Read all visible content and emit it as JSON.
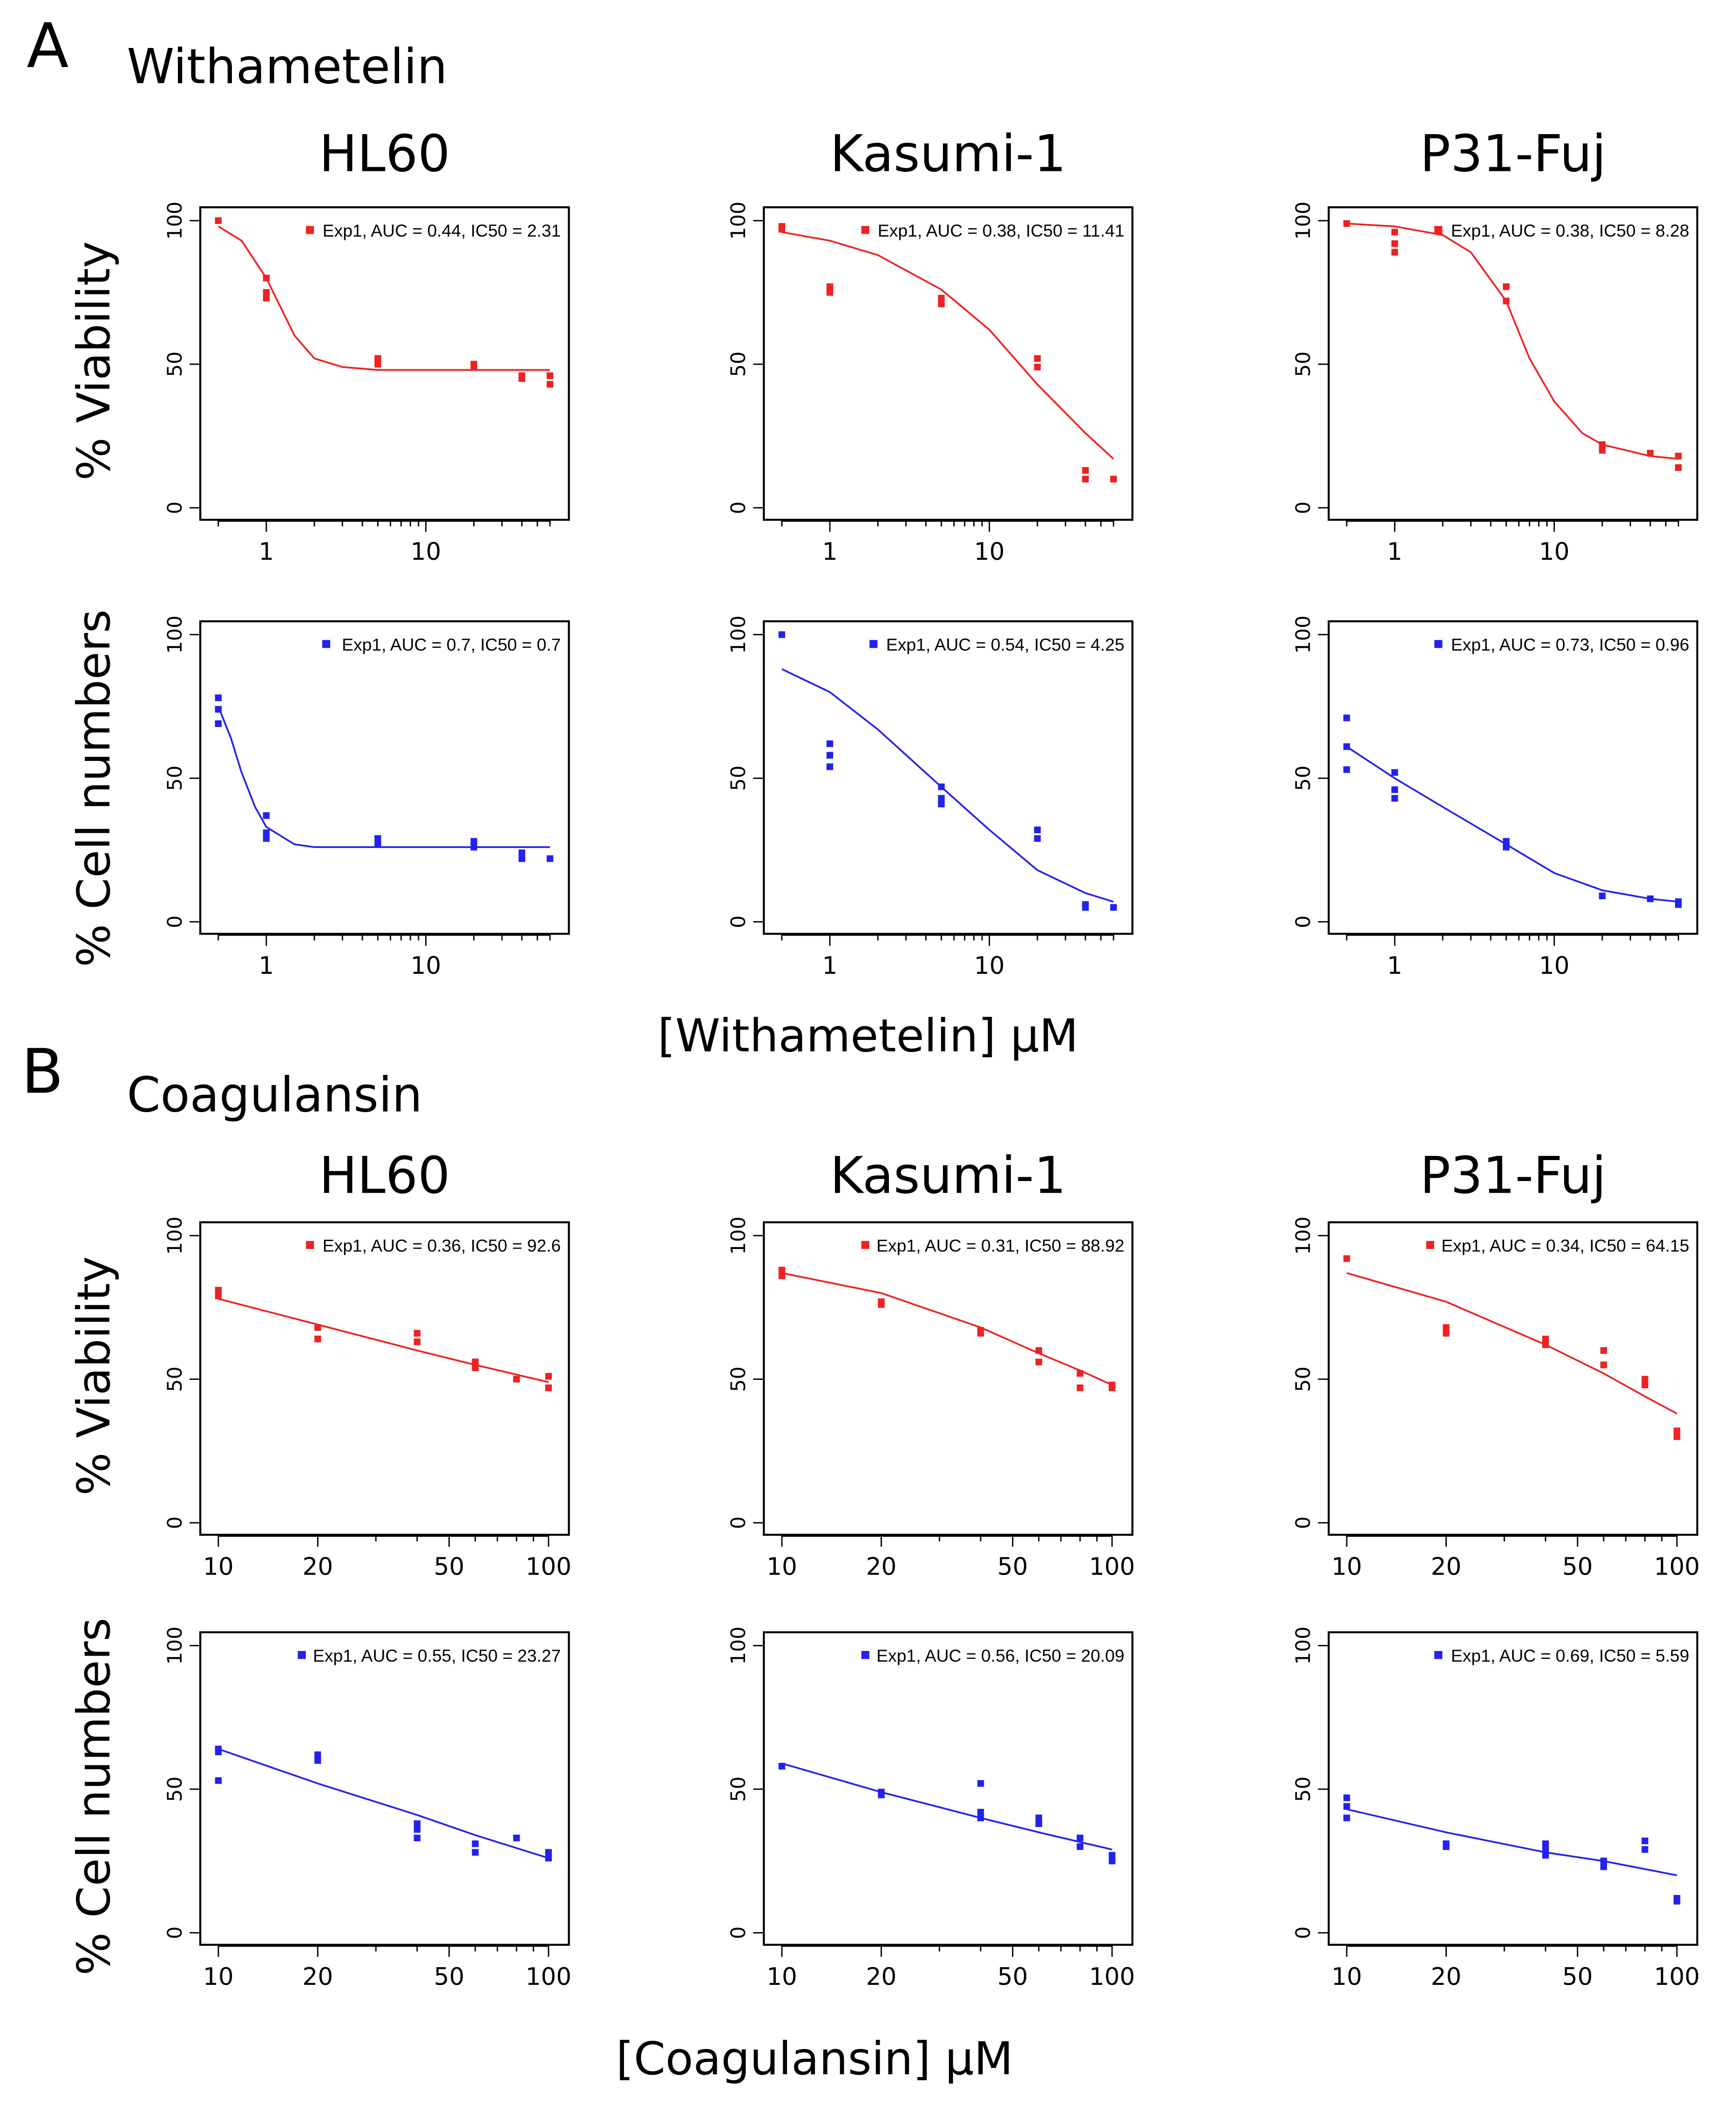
{
  "sections": [
    {
      "letter": "A",
      "title": "Withametelin",
      "xlabel": "[Withametelin] μM"
    },
    {
      "letter": "B",
      "title": "Coagulansin",
      "xlabel": "[Coagulansin] μM"
    }
  ],
  "row_labels": [
    "% Viability",
    "% Cell numbers"
  ],
  "colors": {
    "viability": "#ee2222",
    "cell_numbers": "#2222ee"
  },
  "chart_data": [
    {
      "type": "scatter",
      "section": 0,
      "row": 0,
      "col": 0,
      "title": "HL60",
      "ylabel": "% Viability",
      "x_scale": "log",
      "xlim": [
        0.45,
        65
      ],
      "ylim": [
        0,
        100
      ],
      "xticks": [
        "1",
        "10"
      ],
      "yticks": [
        "0",
        "50",
        "100"
      ],
      "legend": "Exp1, AUC = 0.44, IC50 = 2.31",
      "legend_position": "top-right",
      "color": "#ee2222",
      "points": [
        [
          0.5,
          100
        ],
        [
          1,
          80
        ],
        [
          1,
          73
        ],
        [
          1,
          75
        ],
        [
          5,
          52
        ],
        [
          5,
          50
        ],
        [
          20,
          50
        ],
        [
          20,
          49
        ],
        [
          40,
          46
        ],
        [
          40,
          45
        ],
        [
          60,
          46
        ],
        [
          60,
          43
        ]
      ],
      "fit": [
        [
          0.5,
          98
        ],
        [
          0.7,
          93
        ],
        [
          1,
          80
        ],
        [
          1.5,
          60
        ],
        [
          2,
          52
        ],
        [
          3,
          49
        ],
        [
          5,
          48
        ],
        [
          60,
          48
        ]
      ]
    },
    {
      "type": "scatter",
      "section": 0,
      "row": 0,
      "col": 1,
      "title": "Kasumi-1",
      "ylabel": "",
      "x_scale": "log",
      "xlim": [
        0.45,
        65
      ],
      "ylim": [
        0,
        100
      ],
      "xticks": [
        "1",
        "10"
      ],
      "yticks": [
        "0",
        "50",
        "100"
      ],
      "legend": "Exp1, AUC = 0.38, IC50 = 11.41",
      "legend_position": "top-right",
      "color": "#ee2222",
      "points": [
        [
          0.5,
          97
        ],
        [
          0.5,
          98
        ],
        [
          1,
          77
        ],
        [
          1,
          75
        ],
        [
          5,
          73
        ],
        [
          5,
          71
        ],
        [
          20,
          52
        ],
        [
          20,
          49
        ],
        [
          40,
          13
        ],
        [
          40,
          10
        ],
        [
          60,
          10
        ]
      ],
      "fit": [
        [
          0.5,
          96
        ],
        [
          1,
          93
        ],
        [
          2,
          88
        ],
        [
          5,
          76
        ],
        [
          10,
          62
        ],
        [
          20,
          43
        ],
        [
          40,
          26
        ],
        [
          60,
          17
        ]
      ]
    },
    {
      "type": "scatter",
      "section": 0,
      "row": 0,
      "col": 2,
      "title": "P31-Fuj",
      "ylabel": "",
      "x_scale": "log",
      "xlim": [
        0.45,
        65
      ],
      "ylim": [
        0,
        100
      ],
      "xticks": [
        "1",
        "10"
      ],
      "yticks": [
        "0",
        "50",
        "100"
      ],
      "legend": "Exp1, AUC = 0.38, IC50 = 8.28",
      "legend_position": "top-right",
      "color": "#ee2222",
      "points": [
        [
          0.5,
          99
        ],
        [
          1,
          92
        ],
        [
          1,
          89
        ],
        [
          1,
          96
        ],
        [
          5,
          77
        ],
        [
          5,
          72
        ],
        [
          20,
          22
        ],
        [
          20,
          20
        ],
        [
          40,
          19
        ],
        [
          60,
          18
        ],
        [
          60,
          14
        ]
      ],
      "fit": [
        [
          0.5,
          99
        ],
        [
          1,
          98
        ],
        [
          2,
          95
        ],
        [
          3,
          89
        ],
        [
          5,
          72
        ],
        [
          7,
          52
        ],
        [
          10,
          37
        ],
        [
          15,
          26
        ],
        [
          20,
          22
        ],
        [
          40,
          18
        ],
        [
          60,
          17
        ]
      ]
    },
    {
      "type": "scatter",
      "section": 0,
      "row": 1,
      "col": 0,
      "title": "",
      "ylabel": "% Cell numbers",
      "x_scale": "log",
      "xlim": [
        0.45,
        65
      ],
      "ylim": [
        0,
        100
      ],
      "xticks": [
        "1",
        "10"
      ],
      "yticks": [
        "0",
        "50",
        "100"
      ],
      "legend": "Exp1, AUC = 0.7, IC50 = 0.7",
      "legend_position": "top-right",
      "color": "#2222ee",
      "points": [
        [
          0.5,
          78
        ],
        [
          0.5,
          74
        ],
        [
          0.5,
          69
        ],
        [
          1,
          37
        ],
        [
          1,
          31
        ],
        [
          1,
          29
        ],
        [
          5,
          29
        ],
        [
          5,
          27
        ],
        [
          20,
          28
        ],
        [
          20,
          26
        ],
        [
          40,
          24
        ],
        [
          40,
          22
        ],
        [
          60,
          22
        ]
      ],
      "fit": [
        [
          0.5,
          75
        ],
        [
          0.6,
          64
        ],
        [
          0.7,
          52
        ],
        [
          0.85,
          40
        ],
        [
          1,
          33
        ],
        [
          1.5,
          27
        ],
        [
          2,
          26
        ],
        [
          60,
          26
        ]
      ]
    },
    {
      "type": "scatter",
      "section": 0,
      "row": 1,
      "col": 1,
      "title": "",
      "ylabel": "",
      "x_scale": "log",
      "xlim": [
        0.45,
        65
      ],
      "ylim": [
        0,
        100
      ],
      "xticks": [
        "1",
        "10"
      ],
      "yticks": [
        "0",
        "50",
        "100"
      ],
      "legend": "Exp1, AUC = 0.54, IC50 = 4.25",
      "legend_position": "top-right",
      "color": "#2222ee",
      "points": [
        [
          0.5,
          100
        ],
        [
          1,
          62
        ],
        [
          1,
          58
        ],
        [
          1,
          54
        ],
        [
          5,
          47
        ],
        [
          5,
          43
        ],
        [
          5,
          41
        ],
        [
          20,
          32
        ],
        [
          20,
          29
        ],
        [
          40,
          6
        ],
        [
          40,
          5
        ],
        [
          60,
          5
        ]
      ],
      "fit": [
        [
          0.5,
          88
        ],
        [
          1,
          80
        ],
        [
          2,
          67
        ],
        [
          5,
          47
        ],
        [
          10,
          32
        ],
        [
          20,
          18
        ],
        [
          40,
          10
        ],
        [
          60,
          7
        ]
      ]
    },
    {
      "type": "scatter",
      "section": 0,
      "row": 1,
      "col": 2,
      "title": "",
      "ylabel": "",
      "x_scale": "log",
      "xlim": [
        0.45,
        65
      ],
      "ylim": [
        0,
        100
      ],
      "xticks": [
        "1",
        "10"
      ],
      "yticks": [
        "0",
        "50",
        "100"
      ],
      "legend": "Exp1, AUC = 0.73, IC50 = 0.96",
      "legend_position": "top-right",
      "color": "#2222ee",
      "points": [
        [
          0.5,
          71
        ],
        [
          0.5,
          61
        ],
        [
          0.5,
          53
        ],
        [
          1,
          52
        ],
        [
          1,
          46
        ],
        [
          1,
          43
        ],
        [
          5,
          28
        ],
        [
          5,
          26
        ],
        [
          20,
          9
        ],
        [
          40,
          8
        ],
        [
          60,
          7
        ],
        [
          60,
          6
        ]
      ],
      "fit": [
        [
          0.5,
          61
        ],
        [
          1,
          50
        ],
        [
          2,
          40
        ],
        [
          5,
          27
        ],
        [
          10,
          17
        ],
        [
          20,
          11
        ],
        [
          40,
          8
        ],
        [
          60,
          7
        ]
      ]
    },
    {
      "type": "scatter",
      "section": 1,
      "row": 0,
      "col": 0,
      "title": "HL60",
      "ylabel": "% Viability",
      "x_scale": "log",
      "xlim": [
        9.5,
        105
      ],
      "ylim": [
        0,
        100
      ],
      "xticks": [
        "10",
        "20",
        "50",
        "100"
      ],
      "yticks": [
        "0",
        "50",
        "100"
      ],
      "legend": "Exp1, AUC = 0.36, IC50 = 92.6",
      "legend_position": "top-right",
      "color": "#ee2222",
      "points": [
        [
          10,
          81
        ],
        [
          10,
          79
        ],
        [
          20,
          68
        ],
        [
          20,
          64
        ],
        [
          40,
          66
        ],
        [
          40,
          63
        ],
        [
          60,
          56
        ],
        [
          60,
          54
        ],
        [
          80,
          50
        ],
        [
          100,
          51
        ],
        [
          100,
          47
        ]
      ],
      "fit": [
        [
          10,
          78
        ],
        [
          20,
          69
        ],
        [
          40,
          60
        ],
        [
          60,
          55
        ],
        [
          100,
          49
        ]
      ]
    },
    {
      "type": "scatter",
      "section": 1,
      "row": 0,
      "col": 1,
      "title": "Kasumi-1",
      "ylabel": "",
      "x_scale": "log",
      "xlim": [
        9.5,
        105
      ],
      "ylim": [
        0,
        100
      ],
      "xticks": [
        "10",
        "20",
        "50",
        "100"
      ],
      "yticks": [
        "0",
        "50",
        "100"
      ],
      "legend": "Exp1, AUC = 0.31, IC50 = 88.92",
      "legend_position": "top-right",
      "color": "#ee2222",
      "points": [
        [
          10,
          88
        ],
        [
          10,
          86
        ],
        [
          20,
          77
        ],
        [
          20,
          76
        ],
        [
          40,
          67
        ],
        [
          40,
          66
        ],
        [
          60,
          60
        ],
        [
          60,
          56
        ],
        [
          80,
          52
        ],
        [
          80,
          47
        ],
        [
          100,
          48
        ],
        [
          100,
          47
        ]
      ],
      "fit": [
        [
          10,
          87
        ],
        [
          20,
          80
        ],
        [
          40,
          68
        ],
        [
          60,
          59
        ],
        [
          80,
          53
        ],
        [
          100,
          48
        ]
      ]
    },
    {
      "type": "scatter",
      "section": 1,
      "row": 0,
      "col": 2,
      "title": "P31-Fuj",
      "ylabel": "",
      "x_scale": "log",
      "xlim": [
        9.5,
        105
      ],
      "ylim": [
        0,
        100
      ],
      "xticks": [
        "10",
        "20",
        "50",
        "100"
      ],
      "yticks": [
        "0",
        "50",
        "100"
      ],
      "legend": "Exp1, AUC = 0.34, IC50 = 64.15",
      "legend_position": "top-right",
      "color": "#ee2222",
      "points": [
        [
          10,
          92
        ],
        [
          20,
          68
        ],
        [
          20,
          66
        ],
        [
          40,
          64
        ],
        [
          40,
          62
        ],
        [
          60,
          60
        ],
        [
          60,
          55
        ],
        [
          80,
          50
        ],
        [
          80,
          48
        ],
        [
          100,
          32
        ],
        [
          100,
          30
        ]
      ],
      "fit": [
        [
          10,
          87
        ],
        [
          20,
          77
        ],
        [
          40,
          62
        ],
        [
          60,
          52
        ],
        [
          80,
          44
        ],
        [
          100,
          38
        ]
      ]
    },
    {
      "type": "scatter",
      "section": 1,
      "row": 1,
      "col": 0,
      "title": "",
      "ylabel": "% Cell numbers",
      "x_scale": "log",
      "xlim": [
        9.5,
        105
      ],
      "ylim": [
        0,
        100
      ],
      "xticks": [
        "10",
        "20",
        "50",
        "100"
      ],
      "yticks": [
        "0",
        "50",
        "100"
      ],
      "legend": "Exp1, AUC = 0.55, IC50 = 23.27",
      "legend_position": "top-right",
      "color": "#2222ee",
      "points": [
        [
          10,
          64
        ],
        [
          10,
          63
        ],
        [
          10,
          53
        ],
        [
          20,
          62
        ],
        [
          20,
          60
        ],
        [
          40,
          38
        ],
        [
          40,
          36
        ],
        [
          40,
          33
        ],
        [
          60,
          31
        ],
        [
          60,
          28
        ],
        [
          80,
          33
        ],
        [
          100,
          28
        ],
        [
          100,
          26
        ]
      ],
      "fit": [
        [
          10,
          64
        ],
        [
          20,
          52
        ],
        [
          40,
          41
        ],
        [
          60,
          34
        ],
        [
          100,
          26
        ]
      ]
    },
    {
      "type": "scatter",
      "section": 1,
      "row": 1,
      "col": 1,
      "title": "",
      "ylabel": "",
      "x_scale": "log",
      "xlim": [
        9.5,
        105
      ],
      "ylim": [
        0,
        100
      ],
      "xticks": [
        "10",
        "20",
        "50",
        "100"
      ],
      "yticks": [
        "0",
        "50",
        "100"
      ],
      "legend": "Exp1, AUC = 0.56, IC50 = 20.09",
      "legend_position": "top-right",
      "color": "#2222ee",
      "points": [
        [
          10,
          58
        ],
        [
          20,
          49
        ],
        [
          20,
          48
        ],
        [
          40,
          52
        ],
        [
          40,
          42
        ],
        [
          40,
          40
        ],
        [
          60,
          40
        ],
        [
          60,
          38
        ],
        [
          80,
          33
        ],
        [
          80,
          30
        ],
        [
          100,
          27
        ],
        [
          100,
          25
        ]
      ],
      "fit": [
        [
          10,
          59
        ],
        [
          20,
          49
        ],
        [
          40,
          40
        ],
        [
          60,
          35
        ],
        [
          100,
          29
        ]
      ]
    },
    {
      "type": "scatter",
      "section": 1,
      "row": 1,
      "col": 2,
      "title": "",
      "ylabel": "",
      "x_scale": "log",
      "xlim": [
        9.5,
        105
      ],
      "ylim": [
        0,
        100
      ],
      "xticks": [
        "10",
        "20",
        "50",
        "100"
      ],
      "yticks": [
        "0",
        "50",
        "100"
      ],
      "legend": "Exp1, AUC = 0.69, IC50 = 5.59",
      "legend_position": "top-right",
      "color": "#2222ee",
      "points": [
        [
          10,
          47
        ],
        [
          10,
          44
        ],
        [
          10,
          40
        ],
        [
          20,
          31
        ],
        [
          20,
          30
        ],
        [
          40,
          31
        ],
        [
          40,
          29
        ],
        [
          40,
          27
        ],
        [
          60,
          25
        ],
        [
          60,
          23
        ],
        [
          80,
          32
        ],
        [
          80,
          29
        ],
        [
          100,
          12
        ],
        [
          100,
          11
        ]
      ],
      "fit": [
        [
          10,
          43
        ],
        [
          20,
          35
        ],
        [
          40,
          28
        ],
        [
          60,
          25
        ],
        [
          100,
          20
        ]
      ]
    }
  ]
}
